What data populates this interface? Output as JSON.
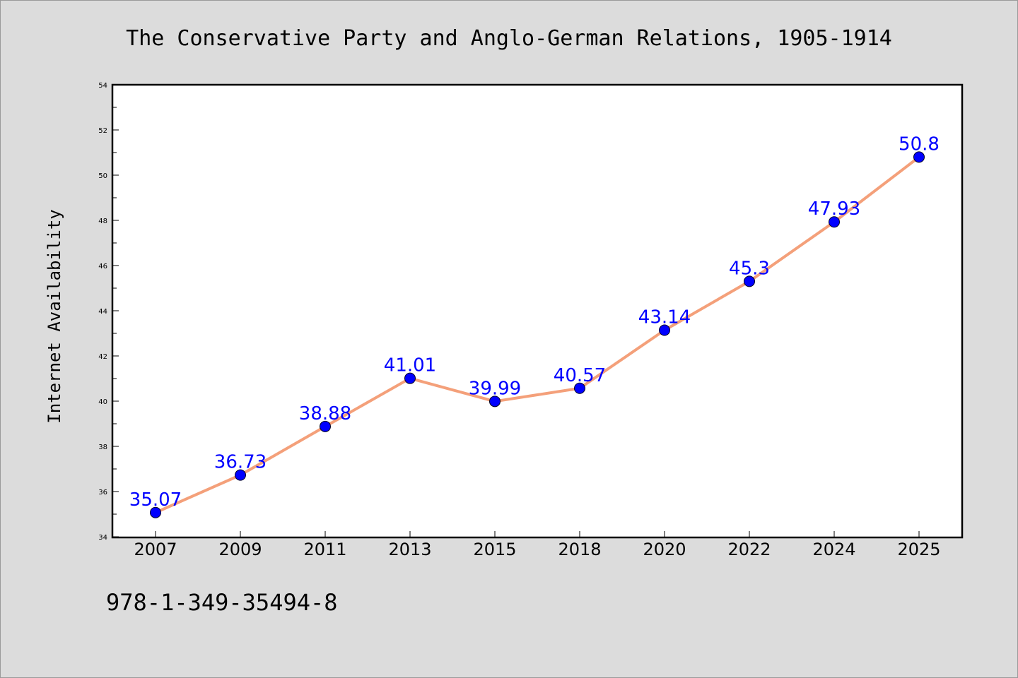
{
  "chart_data": {
    "type": "line",
    "title": "The Conservative Party and Anglo-German Relations, 1905-1914",
    "ylabel": "Internet Availability",
    "xlabel": "",
    "categories": [
      "2007",
      "2009",
      "2011",
      "2013",
      "2015",
      "2018",
      "2020",
      "2022",
      "2024",
      "2025"
    ],
    "values": [
      35.07,
      36.73,
      38.88,
      41.01,
      39.99,
      40.57,
      43.14,
      45.3,
      47.93,
      50.8
    ],
    "data_labels": [
      "35.07",
      "36.73",
      "38.88",
      "41.01",
      "39.99",
      "40.57",
      "43.14",
      "45.3",
      "47.93",
      "50.8"
    ],
    "ylim": [
      34,
      54
    ],
    "yticks": [
      "34",
      "36",
      "38",
      "40",
      "42",
      "44",
      "46",
      "48",
      "50",
      "52",
      "54"
    ],
    "grid": false,
    "line_color": "#f4a07a",
    "marker_color": "#0000ff",
    "label_color": "#0000ff"
  },
  "footer": {
    "isbn": "978-1-349-35494-8"
  }
}
